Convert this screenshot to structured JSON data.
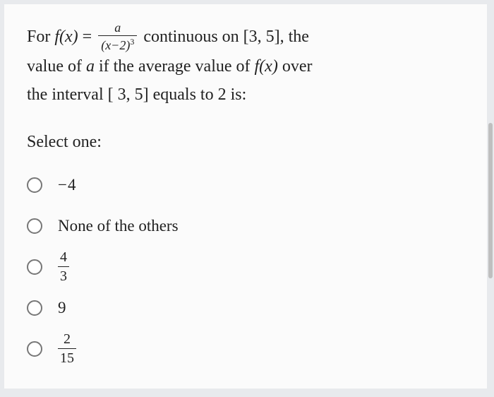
{
  "question": {
    "line1_prefix": "For ",
    "fx": "f(x)",
    "eq": " = ",
    "frac_num": "a",
    "frac_den_left": "(x−2)",
    "frac_den_exp": "3",
    "after_frac": " continuous  on ",
    "interval1": "[3, 5]",
    "after_interval": ", the",
    "line2_a": "value of ",
    "a_var": "a",
    "line2_b": " if the average value of  ",
    "fx2": "f(x)",
    "line2_c": " over",
    "line3": "the interval [ 3, 5] equals to 2 is:"
  },
  "prompt": "Select one:",
  "options": [
    {
      "type": "plain",
      "text": "−4"
    },
    {
      "type": "plain",
      "text": "None of the others"
    },
    {
      "type": "frac",
      "num": "4",
      "den": "3"
    },
    {
      "type": "plain",
      "text": "9"
    },
    {
      "type": "frac",
      "num": "2",
      "den": "15"
    }
  ],
  "colors": {
    "page_bg": "#e8eaed",
    "card_bg": "#fbfbfb",
    "text": "#222222",
    "radio_border": "#777777",
    "scrollbar": "#bfbfbf"
  }
}
